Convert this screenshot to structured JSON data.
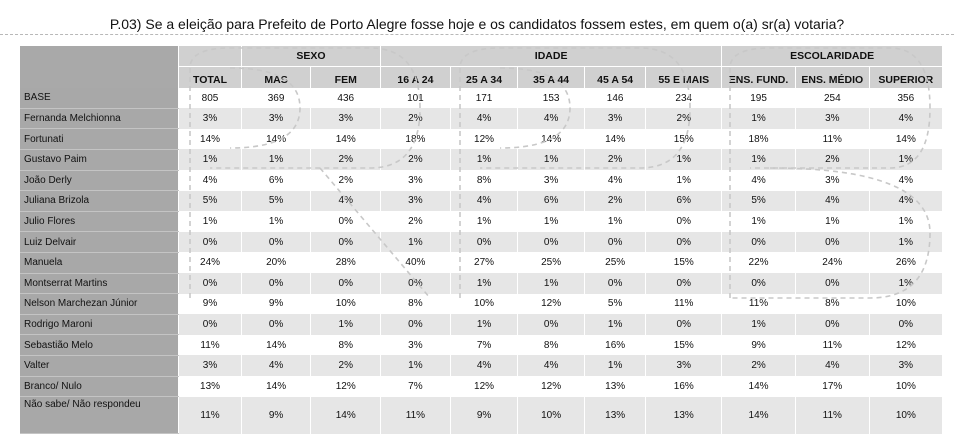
{
  "title": "P.03) Se a eleição para Prefeito de Porto Alegre fosse hoje e os candidatos fossem estes, em quem o(a) sr(a) votaria?",
  "groups": {
    "sexo": "SEXO",
    "idade": "IDADE",
    "escolaridade": "ESCOLARIDADE"
  },
  "columns": [
    "TOTAL",
    "MAS",
    "FEM",
    "16 A 24",
    "25 A 34",
    "35 A 44",
    "45 A 54",
    "55 E MAIS",
    "ENS. FUND.",
    "ENS. MÉDIO",
    "SUPERIOR"
  ],
  "rows": [
    {
      "label": "BASE",
      "values": [
        "805",
        "369",
        "436",
        "101",
        "171",
        "153",
        "146",
        "234",
        "195",
        "254",
        "356"
      ]
    },
    {
      "label": "Fernanda Melchionna",
      "values": [
        "3%",
        "3%",
        "3%",
        "2%",
        "4%",
        "4%",
        "3%",
        "2%",
        "1%",
        "3%",
        "4%"
      ]
    },
    {
      "label": "Fortunati",
      "values": [
        "14%",
        "14%",
        "14%",
        "18%",
        "12%",
        "14%",
        "14%",
        "15%",
        "18%",
        "11%",
        "14%"
      ]
    },
    {
      "label": "Gustavo Paim",
      "values": [
        "1%",
        "1%",
        "2%",
        "2%",
        "1%",
        "1%",
        "2%",
        "1%",
        "1%",
        "2%",
        "1%"
      ]
    },
    {
      "label": "João Derly",
      "values": [
        "4%",
        "6%",
        "2%",
        "3%",
        "8%",
        "3%",
        "4%",
        "1%",
        "4%",
        "3%",
        "4%"
      ]
    },
    {
      "label": "Juliana Brizola",
      "values": [
        "5%",
        "5%",
        "4%",
        "3%",
        "4%",
        "6%",
        "2%",
        "6%",
        "5%",
        "4%",
        "4%"
      ]
    },
    {
      "label": "Julio Flores",
      "values": [
        "1%",
        "1%",
        "0%",
        "2%",
        "1%",
        "1%",
        "1%",
        "0%",
        "1%",
        "1%",
        "1%"
      ]
    },
    {
      "label": "Luiz Delvair",
      "values": [
        "0%",
        "0%",
        "0%",
        "1%",
        "0%",
        "0%",
        "0%",
        "0%",
        "0%",
        "0%",
        "1%"
      ]
    },
    {
      "label": "Manuela",
      "values": [
        "24%",
        "20%",
        "28%",
        "40%",
        "27%",
        "25%",
        "25%",
        "15%",
        "22%",
        "24%",
        "26%"
      ]
    },
    {
      "label": "Montserrat Martins",
      "values": [
        "0%",
        "0%",
        "0%",
        "0%",
        "1%",
        "1%",
        "0%",
        "0%",
        "0%",
        "0%",
        "1%"
      ]
    },
    {
      "label": "Nelson Marchezan Júnior",
      "values": [
        "9%",
        "9%",
        "10%",
        "8%",
        "10%",
        "12%",
        "5%",
        "11%",
        "11%",
        "8%",
        "10%"
      ]
    },
    {
      "label": "Rodrigo Maroni",
      "values": [
        "0%",
        "0%",
        "1%",
        "0%",
        "1%",
        "0%",
        "1%",
        "0%",
        "1%",
        "0%",
        "0%"
      ]
    },
    {
      "label": "Sebastião Melo",
      "values": [
        "11%",
        "14%",
        "8%",
        "3%",
        "7%",
        "8%",
        "16%",
        "15%",
        "9%",
        "11%",
        "12%"
      ]
    },
    {
      "label": "Valter",
      "values": [
        "3%",
        "4%",
        "2%",
        "1%",
        "4%",
        "4%",
        "1%",
        "3%",
        "2%",
        "4%",
        "3%"
      ]
    },
    {
      "label": "Branco/ Nulo",
      "values": [
        "13%",
        "14%",
        "12%",
        "7%",
        "12%",
        "12%",
        "13%",
        "16%",
        "14%",
        "17%",
        "10%"
      ]
    },
    {
      "label": "Não sabe/ Não respondeu",
      "values": [
        "11%",
        "9%",
        "14%",
        "11%",
        "9%",
        "10%",
        "13%",
        "13%",
        "14%",
        "11%",
        "10%"
      ]
    }
  ],
  "colors": {
    "label_bg": "#a8a8a8",
    "header_bg": "#d0d0d0",
    "row_alt_bg": "#e6e6e6"
  }
}
